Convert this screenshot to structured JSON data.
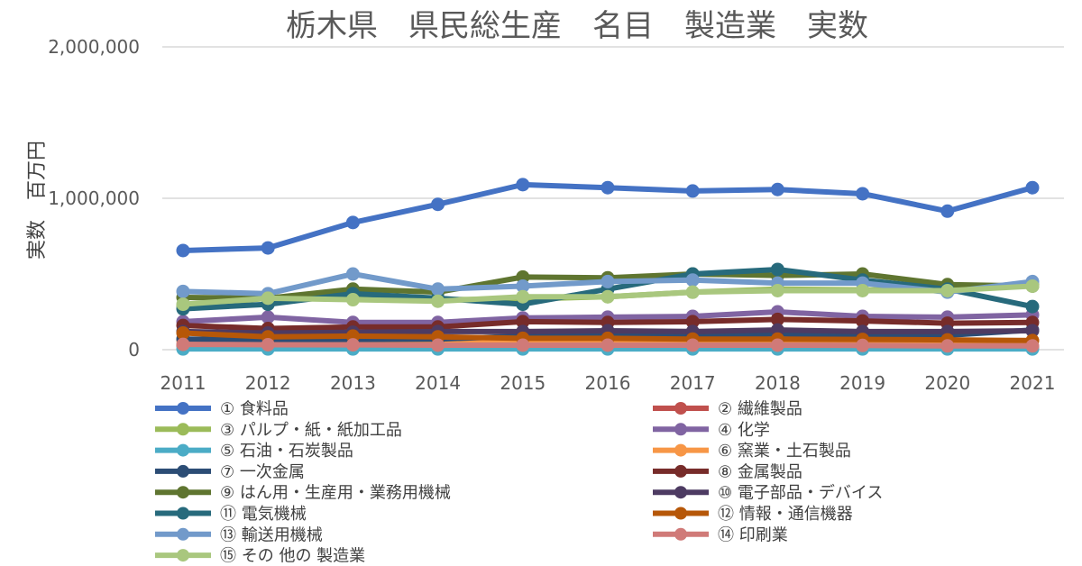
{
  "chart_data": {
    "type": "line",
    "title": "栃木県　県民総生産　名目　製造業　実数",
    "ylabel": "実数　百万円",
    "xlabel": "",
    "ylim": [
      0,
      2000000
    ],
    "yticks": [
      0,
      1000000,
      2000000
    ],
    "ytick_labels": [
      "0",
      "1,000,000",
      "2,000,000"
    ],
    "categories": [
      "2011",
      "2012",
      "2013",
      "2014",
      "2015",
      "2016",
      "2017",
      "2018",
      "2019",
      "2020",
      "2021"
    ],
    "grid": true,
    "legend_position": "bottom",
    "series": [
      {
        "name": "① 食料品",
        "color": "#4472C4",
        "values": [
          655000,
          672000,
          840000,
          960000,
          1090000,
          1070000,
          1048000,
          1058000,
          1030000,
          915000,
          1070000
        ]
      },
      {
        "name": "② 繊維製品",
        "color": "#C0504D",
        "values": [
          28000,
          27000,
          26000,
          26000,
          26000,
          25000,
          25000,
          24000,
          23000,
          20000,
          20000
        ]
      },
      {
        "name": "③ パルプ・紙・紙加工品",
        "color": "#9BBB59",
        "values": [
          290000,
          340000,
          345000,
          330000,
          335000,
          350000,
          380000,
          400000,
          395000,
          395000,
          430000
        ]
      },
      {
        "name": "④ 化学",
        "color": "#8064A2",
        "values": [
          185000,
          215000,
          180000,
          180000,
          210000,
          215000,
          220000,
          250000,
          220000,
          215000,
          230000
        ]
      },
      {
        "name": "⑤ 石油・石炭製品",
        "color": "#4BACC6",
        "values": [
          5000,
          5000,
          5000,
          5000,
          5000,
          5000,
          5000,
          5000,
          5000,
          5000,
          5000
        ]
      },
      {
        "name": "⑥ 窯業・土石製品",
        "color": "#F79646",
        "values": [
          60000,
          58000,
          60000,
          62000,
          60000,
          60000,
          62000,
          62000,
          60000,
          58000,
          60000
        ]
      },
      {
        "name": "⑦ 一次金属",
        "color": "#2C4D75",
        "values": [
          70000,
          65000,
          68000,
          70000,
          90000,
          95000,
          100000,
          105000,
          100000,
          95000,
          130000
        ]
      },
      {
        "name": "⑧ 金属製品",
        "color": "#772C2A",
        "values": [
          160000,
          140000,
          150000,
          150000,
          185000,
          180000,
          185000,
          200000,
          190000,
          175000,
          180000
        ]
      },
      {
        "name": "⑨ はん用・生産用・業務用機械",
        "color": "#5F7530",
        "values": [
          345000,
          340000,
          400000,
          380000,
          480000,
          475000,
          500000,
          490000,
          500000,
          430000,
          420000
        ]
      },
      {
        "name": "⑩ 電子部品・デバイス",
        "color": "#4D3B62",
        "values": [
          120000,
          110000,
          115000,
          120000,
          120000,
          125000,
          120000,
          130000,
          120000,
          120000,
          125000
        ]
      },
      {
        "name": "⑪ 電気機械",
        "color": "#276A7C",
        "values": [
          270000,
          300000,
          370000,
          340000,
          300000,
          400000,
          500000,
          530000,
          460000,
          400000,
          285000
        ]
      },
      {
        "name": "⑫ 情報・通信機器",
        "color": "#B65708",
        "values": [
          110000,
          85000,
          90000,
          85000,
          75000,
          75000,
          70000,
          70000,
          68000,
          65000,
          60000
        ]
      },
      {
        "name": "⑬ 輸送用機械",
        "color": "#729ACA",
        "values": [
          385000,
          370000,
          500000,
          400000,
          420000,
          450000,
          460000,
          440000,
          440000,
          380000,
          450000
        ]
      },
      {
        "name": "⑭ 印刷業",
        "color": "#D07A78",
        "values": [
          35000,
          33000,
          32000,
          30000,
          30000,
          30000,
          30000,
          30000,
          28000,
          25000,
          25000
        ]
      },
      {
        "name": "⑮ その 他の 製造業",
        "color": "#A9C77E",
        "values": [
          300000,
          340000,
          330000,
          320000,
          350000,
          350000,
          380000,
          390000,
          390000,
          390000,
          420000
        ]
      }
    ]
  }
}
